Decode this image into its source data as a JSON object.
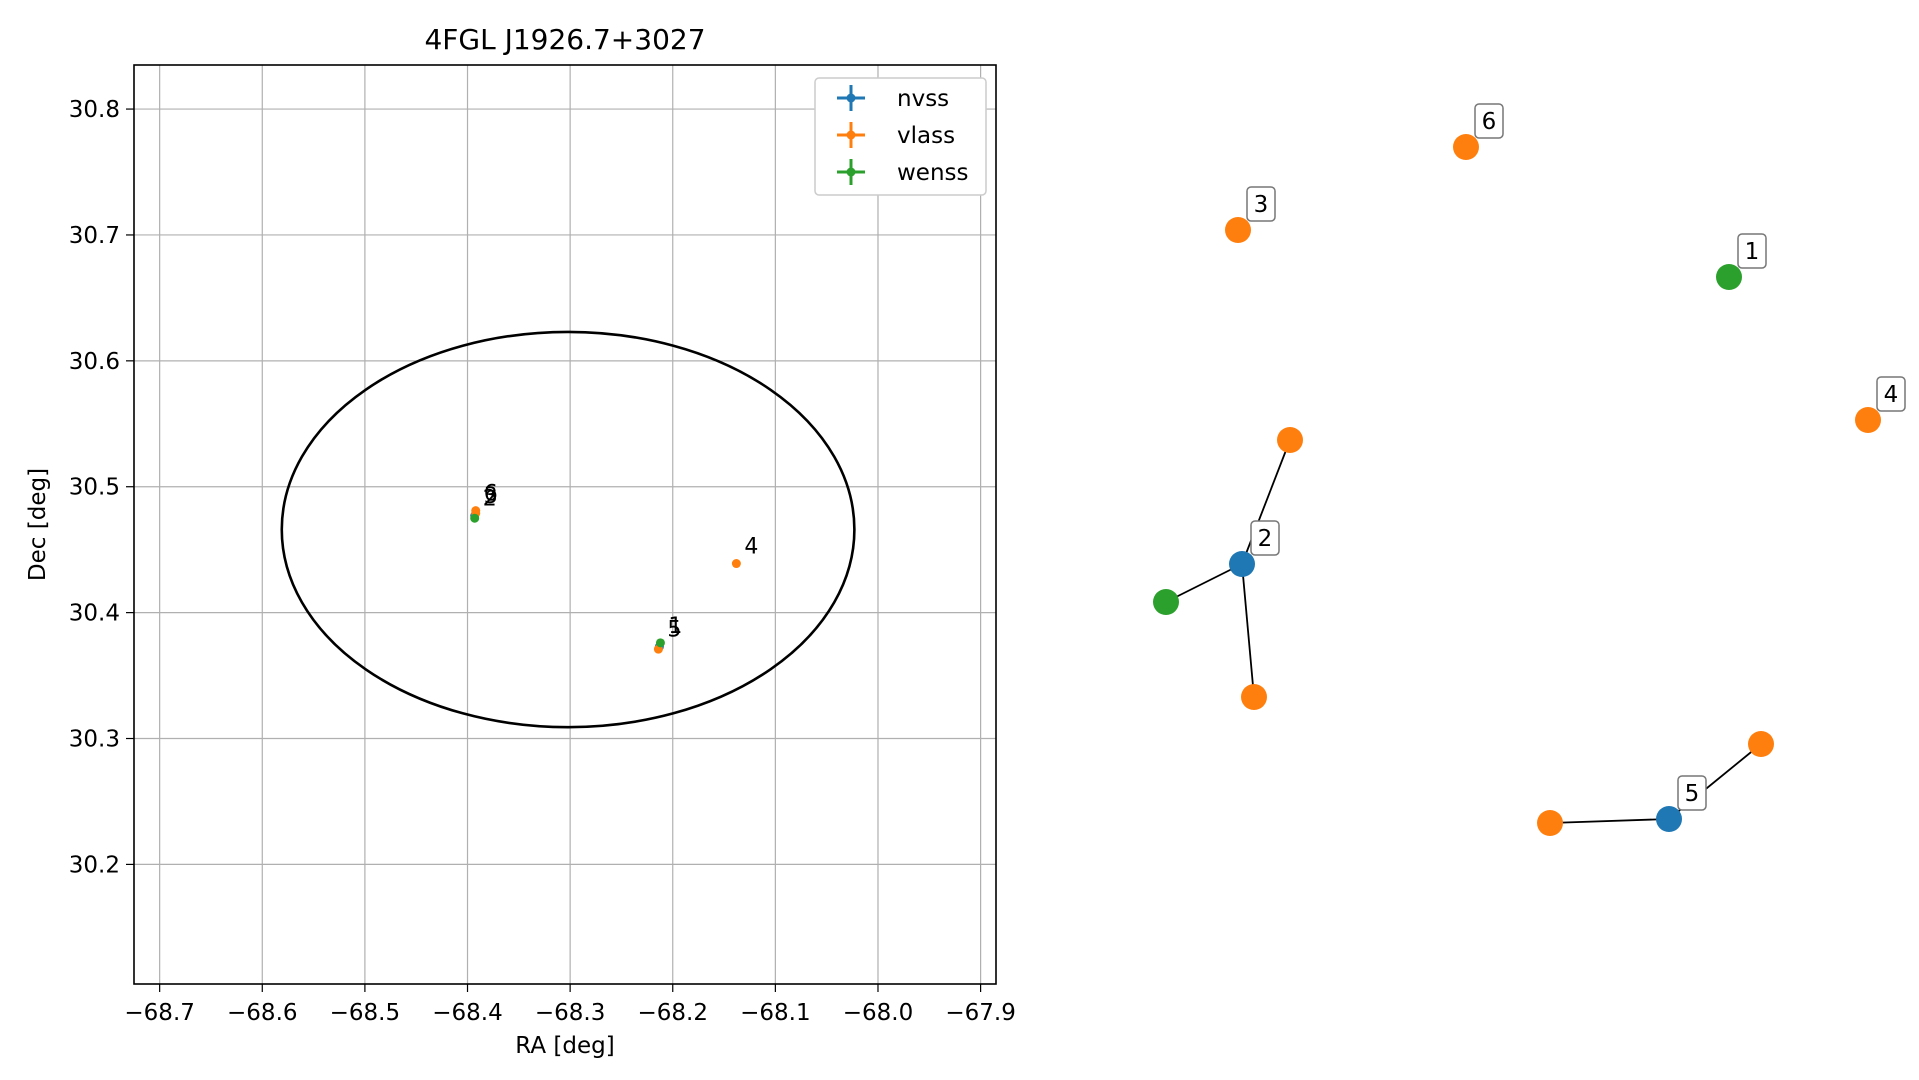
{
  "chart_data": [
    {
      "type": "scatter",
      "title": "4FGL J1926.7+3027",
      "xlabel": "RA [deg]",
      "ylabel": "Dec [deg]",
      "xlim": [
        -68.725,
        -67.885
      ],
      "ylim": [
        30.105,
        30.835
      ],
      "xticks": [
        -68.7,
        -68.6,
        -68.5,
        -68.4,
        -68.3,
        -68.2,
        -68.1,
        -68.0,
        -67.9
      ],
      "xtick_labels": [
        "−68.7",
        "−68.6",
        "−68.5",
        "−68.4",
        "−68.3",
        "−68.2",
        "−68.1",
        "−68.0",
        "−67.9"
      ],
      "yticks": [
        30.2,
        30.3,
        30.4,
        30.5,
        30.6,
        30.7,
        30.8
      ],
      "ytick_labels": [
        "30.2",
        "30.3",
        "30.4",
        "30.5",
        "30.6",
        "30.7",
        "30.8"
      ],
      "grid": true,
      "legend_position": "top-right",
      "series": [
        {
          "name": "nvss",
          "color": "#1f77b4",
          "points": [
            {
              "x": -68.393,
              "y": 30.477,
              "label": "2"
            },
            {
              "x": -68.213,
              "y": 30.373,
              "label": "5"
            }
          ]
        },
        {
          "name": "vlass",
          "color": "#ff7f0e",
          "points": [
            {
              "x": -68.392,
              "y": 30.481,
              "label": "6"
            },
            {
              "x": -68.392,
              "y": 30.479,
              "label": "3"
            },
            {
              "x": -68.138,
              "y": 30.439,
              "label": "4"
            },
            {
              "x": -68.214,
              "y": 30.371,
              "label": ""
            }
          ]
        },
        {
          "name": "wenss",
          "color": "#2ca02c",
          "points": [
            {
              "x": -68.393,
              "y": 30.475,
              "label": ""
            },
            {
              "x": -68.212,
              "y": 30.376,
              "label": "1"
            }
          ]
        }
      ],
      "error_ellipse": {
        "center_ra": -68.302,
        "center_dec": 30.466,
        "semi_axis_ra": 0.279,
        "semi_axis_dec": 0.157,
        "color": "#000000"
      }
    },
    {
      "type": "network",
      "nodes": [
        {
          "id": "g1",
          "survey": "wenss",
          "color": "#2ca02c",
          "label": "1"
        },
        {
          "id": "g2",
          "survey": "nvss",
          "color": "#1f77b4",
          "label": "2"
        },
        {
          "id": "g3",
          "survey": "vlass",
          "color": "#ff7f0e",
          "label": "3"
        },
        {
          "id": "g4",
          "survey": "vlass",
          "color": "#ff7f0e",
          "label": "4"
        },
        {
          "id": "g5",
          "survey": "nvss",
          "color": "#1f77b4",
          "label": "5"
        },
        {
          "id": "g6",
          "survey": "vlass",
          "color": "#ff7f0e",
          "label": "6"
        },
        {
          "id": "g7",
          "survey": "vlass",
          "color": "#ff7f0e",
          "label": ""
        },
        {
          "id": "g8",
          "survey": "wenss",
          "color": "#2ca02c",
          "label": ""
        },
        {
          "id": "g9",
          "survey": "vlass",
          "color": "#ff7f0e",
          "label": ""
        },
        {
          "id": "g10",
          "survey": "vlass",
          "color": "#ff7f0e",
          "label": ""
        },
        {
          "id": "g11",
          "survey": "vlass",
          "color": "#ff7f0e",
          "label": ""
        }
      ],
      "edges": [
        [
          "g2",
          "g7"
        ],
        [
          "g2",
          "g8"
        ],
        [
          "g2",
          "g9"
        ],
        [
          "g5",
          "g10"
        ],
        [
          "g5",
          "g11"
        ]
      ]
    }
  ]
}
